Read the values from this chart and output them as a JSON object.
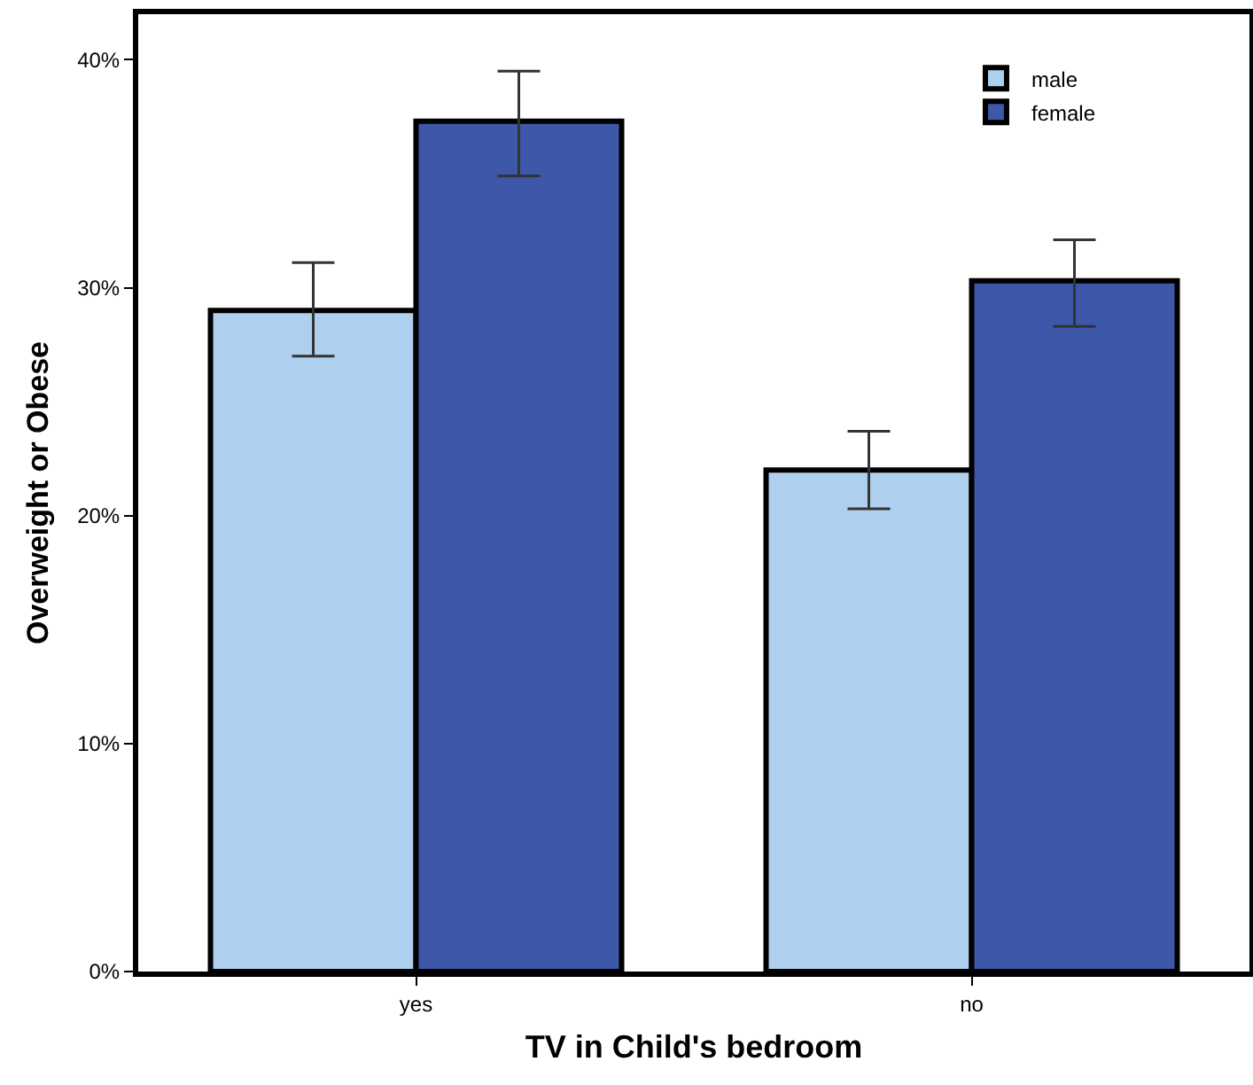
{
  "chart_data": {
    "type": "bar",
    "categories": [
      "yes",
      "no"
    ],
    "xlabel": "TV in Child's bedroom",
    "ylabel": "Overweight or Obese",
    "series": [
      {
        "name": "male",
        "color": "#aecfed",
        "values": [
          29.0,
          22.0
        ],
        "errors": [
          [
            27.0,
            31.1
          ],
          [
            20.3,
            23.7
          ]
        ]
      },
      {
        "name": "female",
        "color": "#3d57a9",
        "values": [
          37.3,
          30.3
        ],
        "errors": [
          [
            34.9,
            39.5
          ],
          [
            28.3,
            32.1
          ]
        ]
      }
    ],
    "ylim": [
      0,
      42
    ],
    "yticks": [
      {
        "value": 0,
        "label": "0%"
      },
      {
        "value": 10,
        "label": "10%"
      },
      {
        "value": 20,
        "label": "20%"
      },
      {
        "value": 30,
        "label": "30%"
      },
      {
        "value": 40,
        "label": "40%"
      }
    ],
    "grid": false,
    "legend": "top right"
  }
}
